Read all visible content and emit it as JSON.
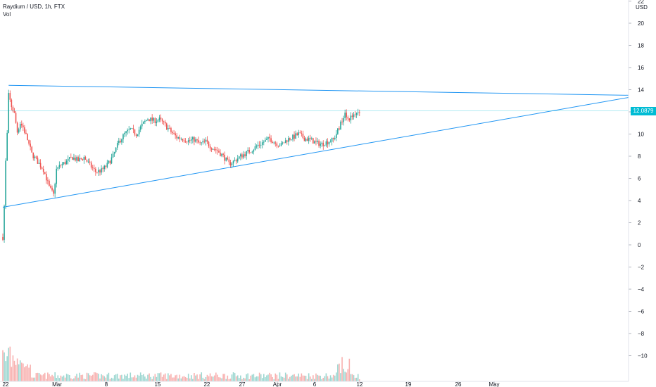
{
  "legend": {
    "symbol": "Raydium / USD, 1h, FTX",
    "volume_label": "Vol"
  },
  "currency": "USD",
  "price_tag": "12.0879",
  "colors": {
    "up": "#26a69a",
    "down": "#ef5350",
    "trendline": "#2196f3",
    "price_line": "#00bcd4"
  },
  "chart_data": {
    "type": "candlestick",
    "y_ticks": [
      "22",
      "20",
      "18",
      "16",
      "14",
      "12",
      "10",
      "8",
      "6",
      "4",
      "2",
      "0",
      "−2",
      "−4",
      "−6",
      "−8",
      "−10"
    ],
    "x_ticks": [
      "22",
      "Mar",
      "8",
      "15",
      "22",
      "27",
      "Apr",
      "6",
      "12",
      "19",
      "26",
      "May"
    ],
    "ylim": [
      -11.5,
      22
    ],
    "last_price": 12.0879,
    "price_path": [
      [
        0,
        0.7
      ],
      [
        1,
        3.5
      ],
      [
        2,
        7.5
      ],
      [
        3,
        10
      ],
      [
        4,
        13.5
      ],
      [
        6,
        12.5
      ],
      [
        8,
        11.8
      ],
      [
        10,
        10.2
      ],
      [
        12,
        11
      ],
      [
        14,
        10.6
      ],
      [
        17,
        9.5
      ],
      [
        20,
        8.2
      ],
      [
        24,
        7.5
      ],
      [
        28,
        6.8
      ],
      [
        32,
        5.2
      ],
      [
        35,
        4.5
      ],
      [
        37,
        6.8
      ],
      [
        40,
        7.2
      ],
      [
        44,
        7.5
      ],
      [
        48,
        7.9
      ],
      [
        52,
        7.6
      ],
      [
        56,
        7.9
      ],
      [
        60,
        7.2
      ],
      [
        64,
        6.6
      ],
      [
        68,
        6.7
      ],
      [
        72,
        7.2
      ],
      [
        76,
        8.0
      ],
      [
        80,
        9.3
      ],
      [
        84,
        10.0
      ],
      [
        88,
        10.4
      ],
      [
        92,
        10.0
      ],
      [
        96,
        10.8
      ],
      [
        100,
        11.4
      ],
      [
        104,
        11.2
      ],
      [
        108,
        11.3
      ],
      [
        112,
        10.8
      ],
      [
        116,
        10.2
      ],
      [
        120,
        9.7
      ],
      [
        124,
        9.6
      ],
      [
        128,
        9.4
      ],
      [
        132,
        9.5
      ],
      [
        136,
        9.1
      ],
      [
        140,
        9.3
      ],
      [
        144,
        8.8
      ],
      [
        148,
        8.5
      ],
      [
        152,
        8.0
      ],
      [
        156,
        7.3
      ],
      [
        160,
        7.6
      ],
      [
        164,
        8.0
      ],
      [
        168,
        8.3
      ],
      [
        172,
        8.6
      ],
      [
        176,
        9.0
      ],
      [
        180,
        9.3
      ],
      [
        184,
        9.6
      ],
      [
        188,
        9.2
      ],
      [
        192,
        9.0
      ],
      [
        196,
        9.5
      ],
      [
        200,
        9.7
      ],
      [
        204,
        10.0
      ],
      [
        208,
        9.6
      ],
      [
        212,
        9.5
      ],
      [
        216,
        9.2
      ],
      [
        220,
        9.1
      ],
      [
        224,
        9.3
      ],
      [
        228,
        9.5
      ],
      [
        232,
        10.6
      ],
      [
        236,
        12.0
      ],
      [
        238,
        11.4
      ],
      [
        240,
        11.5
      ],
      [
        243,
        11.9
      ],
      [
        246,
        12.1
      ]
    ],
    "trendlines": [
      {
        "name": "resistance",
        "from": [
          4,
          14.4
        ],
        "to": [
          405,
          13.5
        ]
      },
      {
        "name": "support",
        "from": [
          0,
          3.4
        ],
        "to": [
          405,
          13.3
        ]
      }
    ],
    "horizontal_line": 12.0879,
    "volume_note": "volume histogram at bottom (no scale)"
  }
}
